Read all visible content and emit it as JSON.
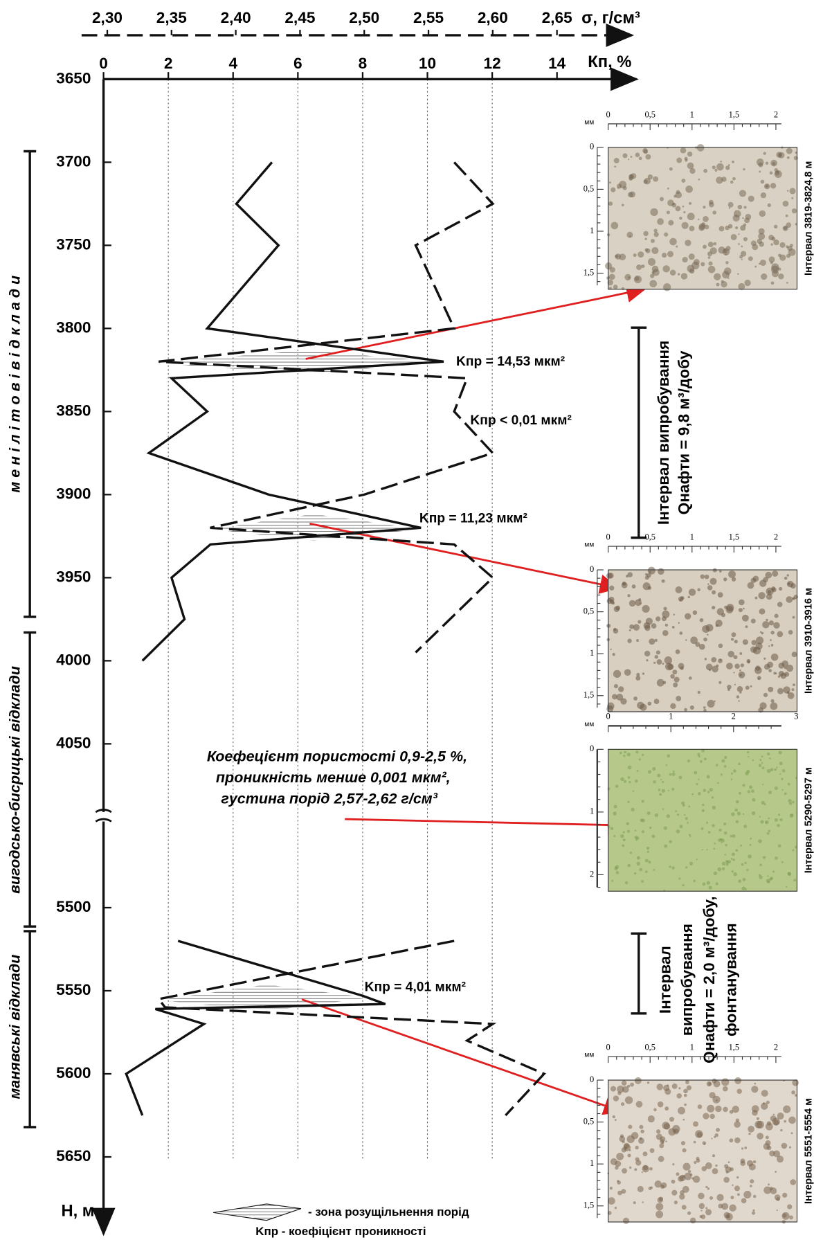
{
  "chart_data": {
    "type": "line",
    "x_axis": {
      "label": "Кп, %",
      "xlim": [
        0,
        16.5
      ],
      "xticks": [
        0,
        2,
        4,
        6,
        8,
        10,
        12,
        14
      ]
    },
    "x2_axis": {
      "label": "σ, г/см³",
      "xlim": [
        2.28,
        2.71
      ],
      "xticks": [
        {
          "value": 2.3,
          "label": "2,30"
        },
        {
          "value": 2.35,
          "label": "2,35"
        },
        {
          "value": 2.4,
          "label": "2,40"
        },
        {
          "value": 2.45,
          "label": "2,45"
        },
        {
          "value": 2.5,
          "label": "2,50"
        },
        {
          "value": 2.55,
          "label": "2,55"
        },
        {
          "value": 2.6,
          "label": "2,60"
        },
        {
          "value": 2.65,
          "label": "2,65"
        }
      ]
    },
    "y_axis": {
      "label": "H, м",
      "segments": [
        {
          "ylim": [
            3650,
            4100
          ],
          "yticks": [
            3650,
            3700,
            3750,
            3800,
            3850,
            3900,
            3950,
            4000,
            4050
          ]
        },
        {
          "ylim": [
            5450,
            5695
          ],
          "yticks": [
            5500,
            5550,
            5600,
            5650
          ]
        }
      ]
    },
    "grid": true,
    "series": [
      {
        "color": "#111111",
        "dash": false,
        "axis": "x",
        "depth": [
          3700,
          3725,
          3750,
          3800,
          3820,
          3830,
          3850,
          3875,
          3900,
          3920,
          3930,
          3950,
          3975,
          4000,
          null,
          5520,
          5553,
          5558,
          5561,
          5570,
          5600,
          5625
        ],
        "values": [
          5.2,
          4.1,
          5.4,
          3.2,
          10.5,
          2.1,
          3.2,
          1.4,
          5.1,
          9.8,
          3.3,
          2.1,
          2.5,
          1.2,
          null,
          2.3,
          8.0,
          8.7,
          1.6,
          3.1,
          0.7,
          1.2
        ]
      },
      {
        "color": "#111111",
        "dash": true,
        "axis": "x2",
        "depth": [
          3700,
          3725,
          3750,
          3800,
          3820,
          3830,
          3850,
          3875,
          3900,
          3920,
          3930,
          3950,
          3995,
          null,
          5520,
          5555,
          5560,
          5570,
          5580,
          5600,
          5625
        ],
        "values": [
          2.57,
          2.6,
          2.54,
          2.57,
          2.34,
          2.58,
          2.57,
          2.6,
          2.5,
          2.38,
          2.57,
          2.6,
          2.54,
          null,
          2.57,
          2.34,
          2.345,
          2.6,
          2.58,
          2.64,
          2.61
        ]
      }
    ],
    "annotations": [
      "Kпр = 14,53 мкм²",
      "Kпр < 0,01 мкм²",
      "Kпр = 11,23 мкм²",
      "Kпр = 4,01 мкм²"
    ],
    "strata": [
      "м е н і л і т о в і    в і д к л а д и",
      "вигодсько-бисрицькі   відклади",
      "манявські   відклади"
    ],
    "note": [
      "Коефецієнт пористості 0,9-2,5 %,",
      "проникність менше 0,001  мкм²,",
      "густина порід 2,57-2,62 г/см³"
    ],
    "tests": [
      [
        "Інтервал випробування",
        "Qнафти = 9,8 м³/добу"
      ],
      [
        "Інтервал",
        "випробування",
        "Qнафти = 2,0 м³/добу,",
        "фонтанування"
      ]
    ],
    "photos": [
      {
        "label": "Інтервал 3819-3824,8 м",
        "unit": "мм",
        "xscale": [
          "0",
          "0,5",
          "1",
          "1,5",
          "2"
        ],
        "yscale": [
          "0",
          "0,5",
          "1",
          "1,5"
        ]
      },
      {
        "label": "Інтервал 3910-3916 м",
        "unit": "мм",
        "xscale": [
          "0",
          "0,5",
          "1",
          "1,5",
          "2"
        ],
        "yscale": [
          "0",
          "0,5",
          "1",
          "1,5"
        ]
      },
      {
        "label": "Інтервал 5290-5297 м",
        "unit": "мм",
        "xscale": [
          "0",
          "1",
          "2",
          "3"
        ],
        "yscale": [
          "0",
          "1",
          "2"
        ]
      },
      {
        "label": "Інтервал 5551-5554 м",
        "unit": "мм",
        "xscale": [
          "0",
          "0,5",
          "1",
          "1,5",
          "2"
        ],
        "yscale": [
          "0",
          "0,5",
          "1",
          "1,5"
        ]
      }
    ],
    "legend": {
      "zone": "- зона розущільнення порід",
      "kpr": "Kпр - коефіцієнт проникності"
    }
  }
}
